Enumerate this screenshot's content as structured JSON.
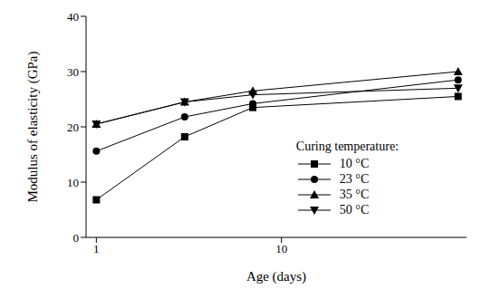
{
  "chart_data": {
    "type": "line",
    "xlabel": "Age (days)",
    "ylabel": "Modulus of elasticity (GPa)",
    "log": "x",
    "x": [
      1,
      3,
      7,
      90
    ],
    "xlim": [
      0.88,
      100
    ],
    "xticks": [
      1,
      10
    ],
    "ylim": [
      0,
      40
    ],
    "yticks": [
      0,
      10,
      20,
      30,
      40
    ],
    "legend": "lower right",
    "legend_title": "Curing temperature:",
    "series": [
      {
        "name": "10 °C",
        "color": "#000000",
        "marker": "square",
        "values": [
          6.8,
          18.2,
          23.5,
          25.5
        ]
      },
      {
        "name": "23 °C",
        "color": "#000000",
        "marker": "circle",
        "values": [
          15.6,
          21.8,
          24.2,
          28.5
        ]
      },
      {
        "name": "35 °C",
        "color": "#000000",
        "marker": "triangle",
        "values": [
          20.5,
          24.5,
          26.5,
          30.0
        ]
      },
      {
        "name": "50 °C",
        "color": "#000000",
        "marker": "triangle_down",
        "values": [
          20.5,
          24.5,
          25.8,
          27.0
        ]
      }
    ]
  }
}
